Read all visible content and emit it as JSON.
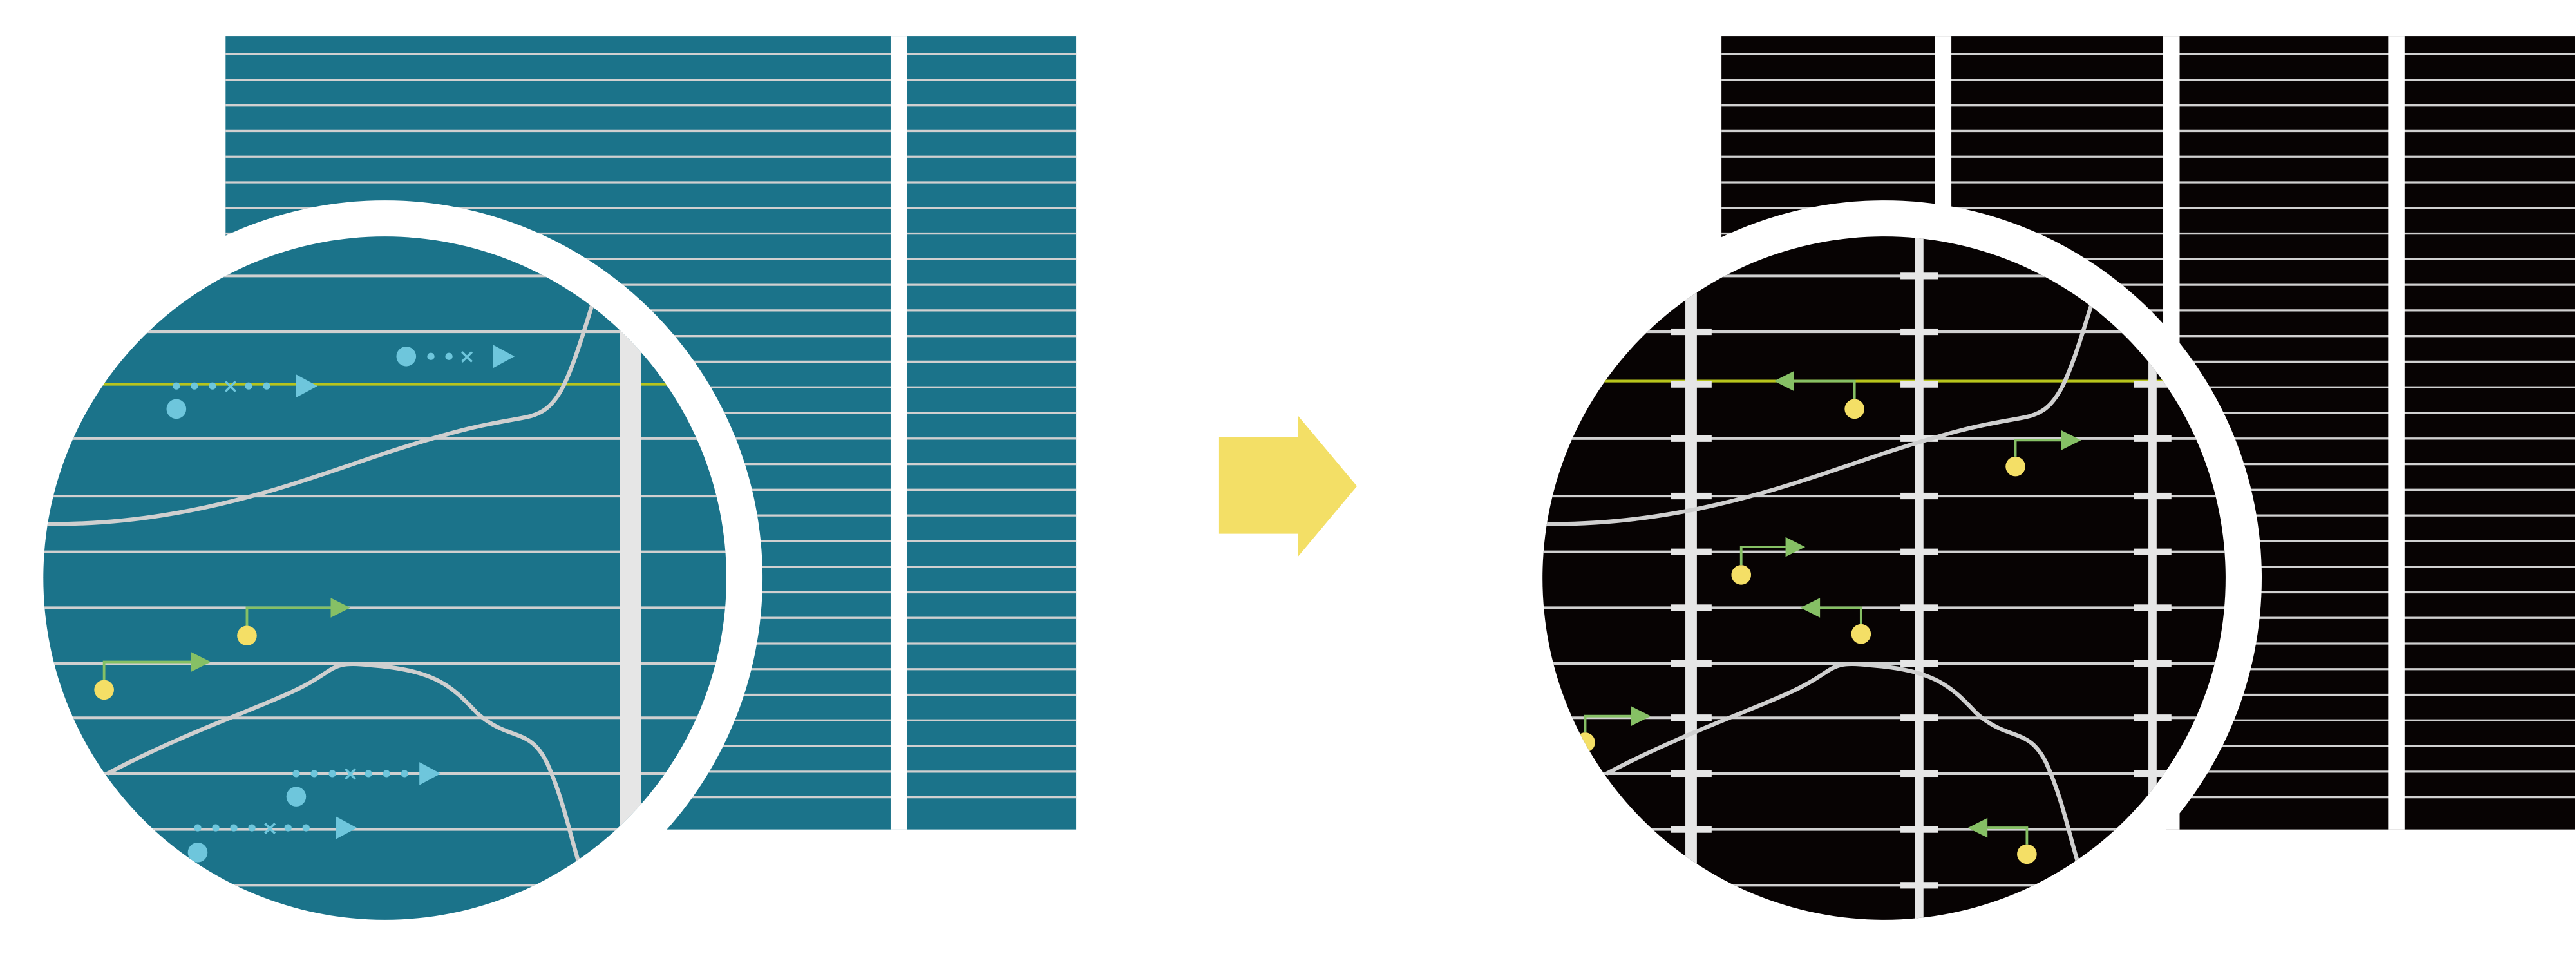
{
  "colors": {
    "background": "#ffffff",
    "before_panel": "#1b738a",
    "after_panel": "#070303",
    "grid_line": "#d0d0d0",
    "bus_bar": "#e6e6e6",
    "junction_line": "#b7c41c",
    "electron_blue": "#6ec6dc",
    "hole_yellow": "#f4df66",
    "path_green": "#86c065",
    "transform_arrow": "#f3df66",
    "boundary_curve": "#cfcfcf"
  },
  "panels": [
    {
      "id": "before",
      "description_icon": "solar-cell-few-busbars",
      "bus_bar_count": 1,
      "magnifier": "magnifier-circle"
    },
    {
      "id": "after",
      "description_icon": "solar-cell-many-busbars",
      "bus_bar_count": 3,
      "magnifier": "magnifier-circle"
    }
  ],
  "transition_icon": "right-arrow-icon"
}
